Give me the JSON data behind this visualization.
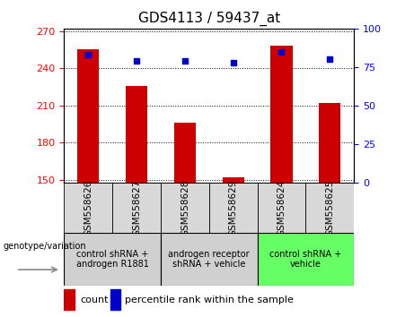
{
  "title": "GDS4113 / 59437_at",
  "samples": [
    "GSM558626",
    "GSM558627",
    "GSM558628",
    "GSM558629",
    "GSM558624",
    "GSM558625"
  ],
  "counts": [
    255,
    226,
    196,
    152,
    258,
    212
  ],
  "percentiles": [
    83,
    79,
    79,
    78,
    85,
    80
  ],
  "ylim_left": [
    148,
    272
  ],
  "ylim_right": [
    0,
    100
  ],
  "yticks_left": [
    150,
    180,
    210,
    240,
    270
  ],
  "yticks_right": [
    0,
    25,
    50,
    75,
    100
  ],
  "bar_color": "#cc0000",
  "dot_color": "#0000cc",
  "groups": [
    {
      "label": "control shRNA +\nandrogen R1881",
      "indices": [
        0,
        1
      ],
      "color": "#d0d0d0"
    },
    {
      "label": "androgen receptor\nshRNA + vehicle",
      "indices": [
        2,
        3
      ],
      "color": "#d0d0d0"
    },
    {
      "label": "control shRNA +\nvehicle",
      "indices": [
        4,
        5
      ],
      "color": "#66ff66"
    }
  ],
  "genotype_label": "genotype/variation",
  "legend_count_label": "count",
  "legend_percentile_label": "percentile rank within the sample",
  "title_fontsize": 11,
  "tick_fontsize": 8,
  "group_fontsize": 7,
  "legend_fontsize": 8
}
